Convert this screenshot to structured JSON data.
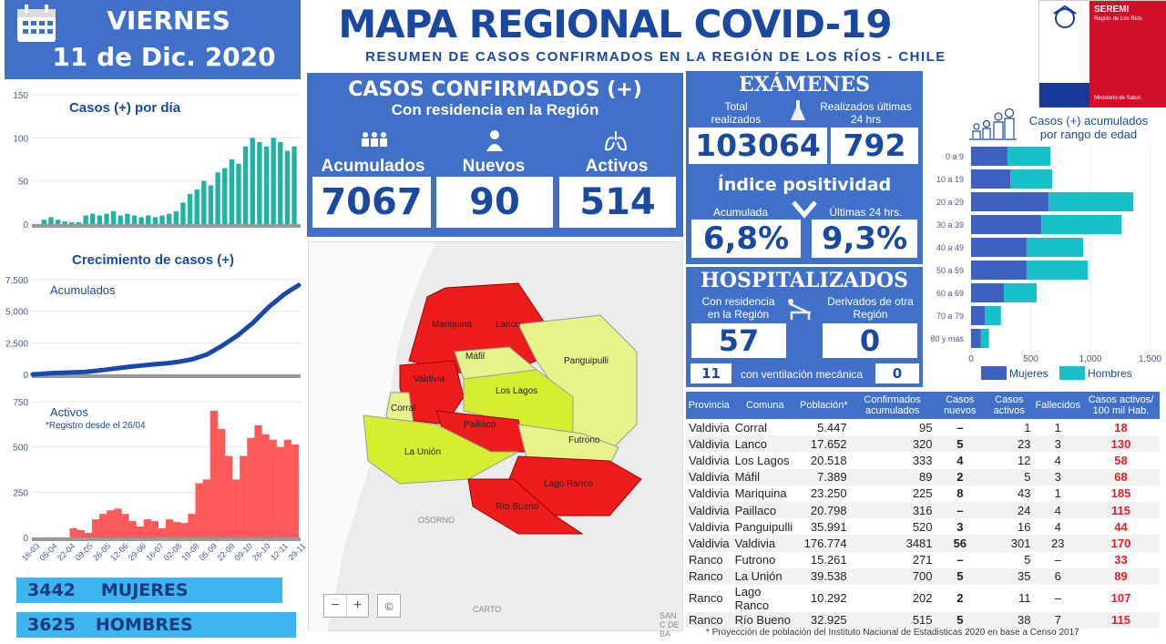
{
  "header": {
    "day": "VIERNES",
    "date": "11 de Dic. 2020",
    "title": "MAPA REGIONAL COVID-19",
    "subtitle": "RESUMEN DE CASOS CONFIRMADOS EN LA REGIÓN DE LOS RÍOS - CHILE",
    "logo_text": "SEREMI",
    "logo_sub": "Región de Los Ríos",
    "logo_ministry": "Ministerio de Salud"
  },
  "confirmados": {
    "title": "CASOS CONFIRMADOS (+)",
    "subtitle": "Con residencia en la Región",
    "acumulados_label": "Acumulados",
    "acumulados": "7067",
    "nuevos_label": "Nuevos",
    "nuevos": "90",
    "activos_label": "Activos",
    "activos": "514"
  },
  "examenes": {
    "title": "EXÁMENES",
    "total_label": "Total realizados",
    "total": "103064",
    "ult_label": "Realizados últimas 24 hrs",
    "ult": "792"
  },
  "positividad": {
    "title": "Índice positividad",
    "acum_label": "Acumulada",
    "acum": "6,8%",
    "ult_label": "Últimas 24 hrs.",
    "ult": "9,3%"
  },
  "hospitalizados": {
    "title": "HOSPITALIZADOS",
    "res_label": "Con residencia en la Región",
    "res": "57",
    "der_label": "Derivados de otra Región",
    "der": "0",
    "vent_label": "con ventilación mecánica",
    "vent_res": "11",
    "vent_der": "0"
  },
  "map": {
    "labels": [
      "Mariquina",
      "Lanco",
      "Máfil",
      "Panguipulli",
      "Valdivia",
      "Los Lagos",
      "Corral",
      "Paillaco",
      "Futrono",
      "La Unión",
      "Lago Ranco",
      "Río Bueno",
      "OSORNO",
      "CARTO",
      "SAN C DE BA"
    ],
    "zoom_out": "−",
    "zoom_in": "+",
    "attribution": "©"
  },
  "sex": {
    "mujeres": "3442",
    "mujeres_label": "MUJERES",
    "hombres": "3625",
    "hombres_label": "HOMBRES"
  },
  "table": {
    "headers": [
      "Provincia",
      "Comuna",
      "Población*",
      "Confirmados acumulados",
      "Casos nuevos",
      "Casos activos",
      "Fallecidos",
      "Casos activos/ 100 mil Hab."
    ],
    "rows": [
      [
        "Valdivia",
        "Corral",
        "5.447",
        "95",
        "–",
        "1",
        "1",
        "18"
      ],
      [
        "Valdivia",
        "Lanco",
        "17.652",
        "320",
        "5",
        "23",
        "3",
        "130"
      ],
      [
        "Valdivia",
        "Los Lagos",
        "20.518",
        "333",
        "4",
        "12",
        "4",
        "58"
      ],
      [
        "Valdivia",
        "Máfil",
        "7.389",
        "89",
        "2",
        "5",
        "3",
        "68"
      ],
      [
        "Valdivia",
        "Mariquina",
        "23.250",
        "225",
        "8",
        "43",
        "1",
        "185"
      ],
      [
        "Valdivia",
        "Paillaco",
        "20.798",
        "316",
        "–",
        "24",
        "4",
        "115"
      ],
      [
        "Valdivia",
        "Panguipulli",
        "35.991",
        "520",
        "3",
        "16",
        "4",
        "44"
      ],
      [
        "Valdivia",
        "Valdivia",
        "176.774",
        "3481",
        "56",
        "301",
        "23",
        "170"
      ],
      [
        "Ranco",
        "Futrono",
        "15.261",
        "271",
        "–",
        "5",
        "–",
        "33"
      ],
      [
        "Ranco",
        "La Unión",
        "39.538",
        "700",
        "5",
        "35",
        "6",
        "89"
      ],
      [
        "Ranco",
        "Lago Ranco",
        "10.292",
        "202",
        "2",
        "11",
        "–",
        "107"
      ],
      [
        "Ranco",
        "Río  Bueno",
        "32.925",
        "515",
        "5",
        "38",
        "7",
        "115"
      ]
    ],
    "footnote": "* Proyección de población del Instituto Nacional de Estadisticas 2020 en base a Censo 2017"
  },
  "chart_data": [
    {
      "type": "bar",
      "title": "Casos (+) por día",
      "ylim": [
        0,
        150
      ],
      "yticks": [
        "0",
        "50",
        "100",
        "150"
      ],
      "color": "#20b2a5",
      "values": [
        0,
        5,
        8,
        5,
        3,
        2,
        2,
        10,
        12,
        10,
        12,
        15,
        10,
        12,
        10,
        8,
        10,
        8,
        10,
        12,
        15,
        25,
        35,
        40,
        50,
        45,
        60,
        65,
        75,
        70,
        90,
        100,
        95,
        90,
        100,
        95,
        85,
        90
      ]
    },
    {
      "type": "line",
      "title": "Crecimiento de casos (+)",
      "series_label": "Acumulados",
      "ylim": [
        0,
        7500
      ],
      "yticks": [
        "0",
        "2,500",
        "5,000",
        "7,500"
      ],
      "color": "#1a47b0",
      "values": [
        0,
        30,
        80,
        110,
        130,
        150,
        170,
        200,
        260,
        330,
        400,
        480,
        550,
        620,
        680,
        740,
        800,
        850,
        900,
        980,
        1080,
        1200,
        1400,
        1600,
        1950,
        2300,
        2700,
        3100,
        3600,
        4100,
        4700,
        5300,
        5800,
        6300,
        6700,
        7067
      ]
    },
    {
      "type": "area",
      "title": "Activos",
      "note": "*Registro desde el 26/04",
      "ylim": [
        0,
        750
      ],
      "yticks": [
        "0",
        "250",
        "500",
        "750"
      ],
      "color": "#ff5a5a",
      "xticks": [
        "16-03",
        "05-04",
        "22-04",
        "09-05",
        "26-05",
        "12-06",
        "29-06",
        "16-07",
        "02-08",
        "19-08",
        "05-09",
        "22-09",
        "09-10",
        "26-10",
        "12-11",
        "29-11"
      ],
      "values": [
        0,
        0,
        0,
        0,
        0,
        50,
        40,
        25,
        100,
        130,
        150,
        160,
        130,
        90,
        60,
        100,
        90,
        50,
        100,
        85,
        80,
        130,
        300,
        320,
        700,
        600,
        450,
        320,
        450,
        550,
        620,
        570,
        540,
        500,
        540,
        514
      ]
    },
    {
      "type": "bar",
      "orientation": "horizontal",
      "stacked": true,
      "title": "Casos (+) acumulados por rango de edad",
      "categories": [
        "0 a 9",
        "10 a 19",
        "20 a 29",
        "30 a 39",
        "40 a 49",
        "50 a 59",
        "60 a 69",
        "70 a 79",
        "80 y más"
      ],
      "xlim": [
        0,
        1500
      ],
      "xticks": [
        "0",
        "500",
        "1,000",
        "1,500"
      ],
      "legend": "bottom",
      "series": [
        {
          "name": "Mujeres",
          "color": "#4060c0",
          "values": [
            305,
            330,
            650,
            590,
            465,
            465,
            275,
            115,
            80
          ]
        },
        {
          "name": "Hombres",
          "color": "#18c0c8",
          "values": [
            360,
            350,
            710,
            670,
            475,
            515,
            275,
            135,
            70
          ]
        }
      ]
    }
  ]
}
